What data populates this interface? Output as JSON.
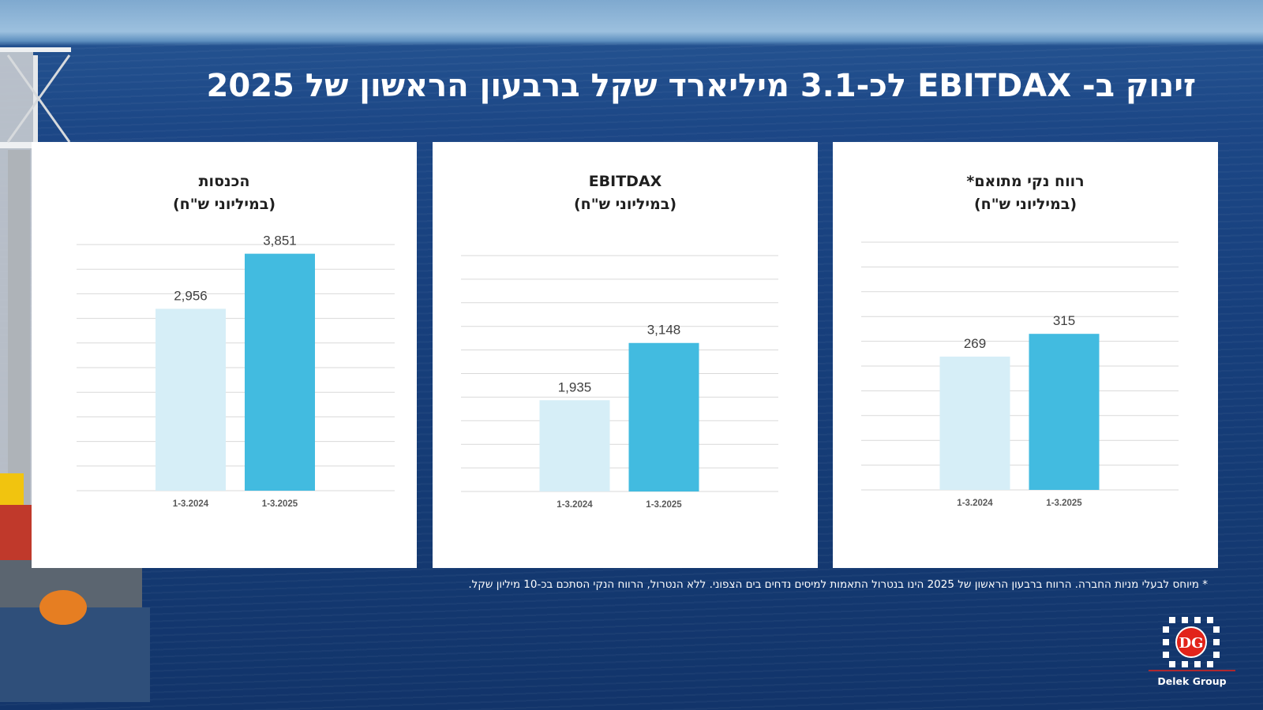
{
  "slide": {
    "title": "זינוק ב- EBITDAX לכ-3.1 מיליארד שקל ברבעון הראשון של 2025",
    "footnote": "* מיוחס לבעלי מניות החברה. הרווח ברבעון הראשון של 2025 הינו בנטרול התאמות למיסים נדחים בים הצפוני. ללא הנטרול, הרווח הנקי הסתכם בכ-10 מיליון שקל.",
    "logo_text": "Delek Group",
    "logo_badge": "DG"
  },
  "colors": {
    "bar_2024": "#d6eef7",
    "bar_2025": "#42bbe0",
    "grid": "#d9d9d9",
    "logo_red": "#e2231a"
  },
  "chart_data": [
    {
      "type": "bar",
      "title": "הכנסות",
      "subtitle": "(במיליוני ש\"ח)",
      "categories": [
        "1-3.2024",
        "1-3.2025"
      ],
      "values": [
        2956,
        3851
      ],
      "value_labels": [
        "2,956",
        "3,851"
      ],
      "ylim": [
        0,
        4000
      ],
      "gridlines": 10,
      "xlabel": "",
      "ylabel": ""
    },
    {
      "type": "bar",
      "title": "EBITDAX",
      "subtitle": "(במיליוני ש\"ח)",
      "categories": [
        "1-3.2024",
        "1-3.2025"
      ],
      "values": [
        1935,
        3148
      ],
      "value_labels": [
        "1,935",
        "3,148"
      ],
      "ylim": [
        0,
        5000
      ],
      "gridlines": 10,
      "xlabel": "",
      "ylabel": ""
    },
    {
      "type": "bar",
      "title": "רווח נקי מתואם*",
      "subtitle": "(במיליוני ש\"ח)",
      "categories": [
        "1-3.2024",
        "1-3.2025"
      ],
      "values": [
        269,
        315
      ],
      "value_labels": [
        "269",
        "315"
      ],
      "ylim": [
        0,
        500
      ],
      "gridlines": 10,
      "xlabel": "",
      "ylabel": ""
    }
  ]
}
